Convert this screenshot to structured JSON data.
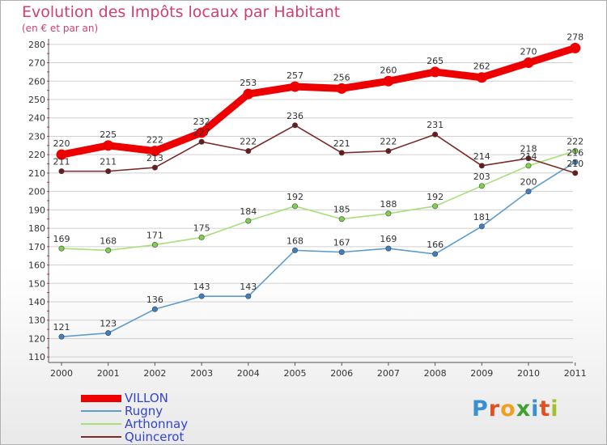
{
  "title": "Evolution des Impôts locaux par Habitant",
  "subtitle": "(en € et par an)",
  "logo": [
    "P",
    "r",
    "o",
    "x",
    "i",
    "t",
    "i"
  ],
  "colors": {
    "title": "#d0406f",
    "grid": "#d0d0d0",
    "axis": "#555555",
    "logo": [
      "#3a8fd0",
      "#e05020",
      "#f0a020",
      "#40a030",
      "#3a8fd0",
      "#e05020",
      "#a0c030"
    ]
  },
  "chart_data": {
    "type": "line",
    "title": "Evolution des Impôts locaux par Habitant",
    "subtitle": "(en € et par an)",
    "xlabel": "",
    "ylabel": "",
    "categories": [
      "2000",
      "2001",
      "2002",
      "2003",
      "2004",
      "2005",
      "2006",
      "2007",
      "2008",
      "2009",
      "2010",
      "2011"
    ],
    "yticks": [
      110,
      120,
      130,
      140,
      150,
      160,
      170,
      180,
      190,
      200,
      210,
      220,
      230,
      240,
      250,
      260,
      270,
      280
    ],
    "ylim": [
      107,
      283
    ],
    "grid": true,
    "legend_position": "bottom-left",
    "series": [
      {
        "name": "VILLON",
        "color": "#ee0000",
        "marker_fill": "#ee0000",
        "values": [
          220,
          225,
          222,
          232,
          253,
          257,
          256,
          260,
          265,
          262,
          270,
          278
        ],
        "labels": [
          "220",
          "225",
          "222",
          "232",
          "253",
          "257",
          "256",
          "260",
          "265",
          "262",
          "270",
          "278"
        ],
        "thick": true
      },
      {
        "name": "Rugny",
        "color": "#5e9ccc",
        "marker_fill": "#3d7fc0",
        "values": [
          121,
          123,
          136,
          143,
          143,
          168,
          167,
          169,
          166,
          181,
          200,
          216
        ],
        "labels": [
          "121",
          "123",
          "136",
          "143",
          "143",
          "168",
          "167",
          "169",
          "166",
          "181",
          "200",
          "216"
        ],
        "thick": false
      },
      {
        "name": "Arthonnay",
        "color": "#a8df7a",
        "marker_fill": "#7fd04e",
        "values": [
          169,
          168,
          171,
          175,
          184,
          192,
          185,
          188,
          192,
          203,
          214,
          222
        ],
        "labels": [
          "169",
          "168",
          "171",
          "175",
          "184",
          "192",
          "185",
          "188",
          "192",
          "203",
          "214",
          "222"
        ],
        "thick": false
      },
      {
        "name": "Quincerot",
        "color": "#7a2a2a",
        "marker_fill": "#6a1a1a",
        "values": [
          211,
          211,
          213,
          227,
          222,
          236,
          221,
          222,
          231,
          214,
          218,
          210
        ],
        "labels": [
          "211",
          "211",
          "213",
          "227",
          "222",
          "236",
          "221",
          "222",
          "231",
          "214",
          "218",
          "210"
        ],
        "thick": false
      }
    ]
  }
}
